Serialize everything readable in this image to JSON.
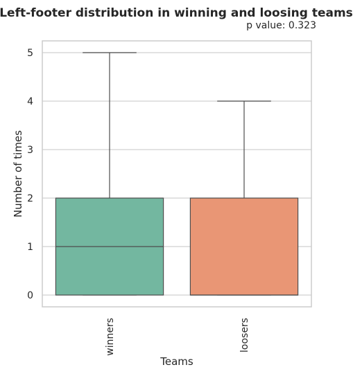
{
  "chart_data": {
    "type": "box",
    "title": "Left-footer distribution in winning and loosing teams",
    "subtitle": "p value: 0.323",
    "xlabel": "Teams",
    "ylabel": "Number of times",
    "ylim": [
      -0.3,
      5.25
    ],
    "yticks": [
      0,
      1,
      2,
      3,
      4,
      5
    ],
    "grid": "horizontal",
    "categories": [
      "winners",
      "loosers"
    ],
    "boxes": [
      {
        "name": "winners",
        "min": 0,
        "q1": 0,
        "median": 1,
        "q3": 2,
        "max": 5,
        "color": "#73b7a0"
      },
      {
        "name": "loosers",
        "min": 0,
        "q1": 0,
        "median": 0,
        "q3": 2,
        "max": 4,
        "color": "#e99675"
      }
    ]
  },
  "colors": {
    "grid": "#d0d0d0",
    "frame": "#cccccc",
    "line": "#4d4d4d"
  }
}
